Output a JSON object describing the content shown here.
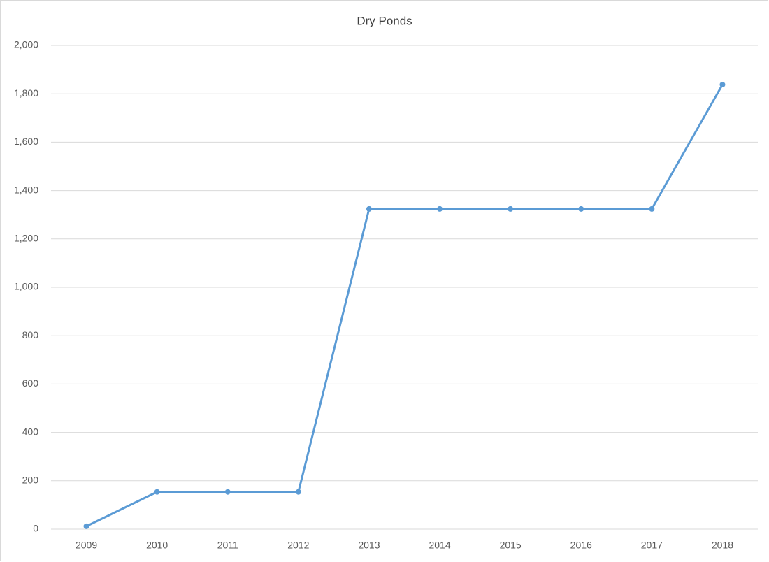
{
  "chart_data": {
    "type": "line",
    "title": "Dry Ponds",
    "categories": [
      "2009",
      "2010",
      "2011",
      "2012",
      "2013",
      "2014",
      "2015",
      "2016",
      "2017",
      "2018"
    ],
    "series": [
      {
        "color": "#5b9bd5",
        "values": [
          12,
          154,
          154,
          154,
          1324,
          1324,
          1324,
          1324,
          1324,
          1838
        ]
      }
    ],
    "ylim": [
      0,
      2000
    ],
    "yticks": [
      0,
      200,
      400,
      600,
      800,
      {
        "value": 1000,
        "label": "1,000"
      },
      {
        "value": 1200,
        "label": "1,200"
      },
      {
        "value": 1400,
        "label": "1,400"
      },
      {
        "value": 1600,
        "label": "1,600"
      },
      {
        "value": 1800,
        "label": "1,800"
      },
      {
        "value": 2000,
        "label": "2,000"
      }
    ],
    "grid": true
  }
}
